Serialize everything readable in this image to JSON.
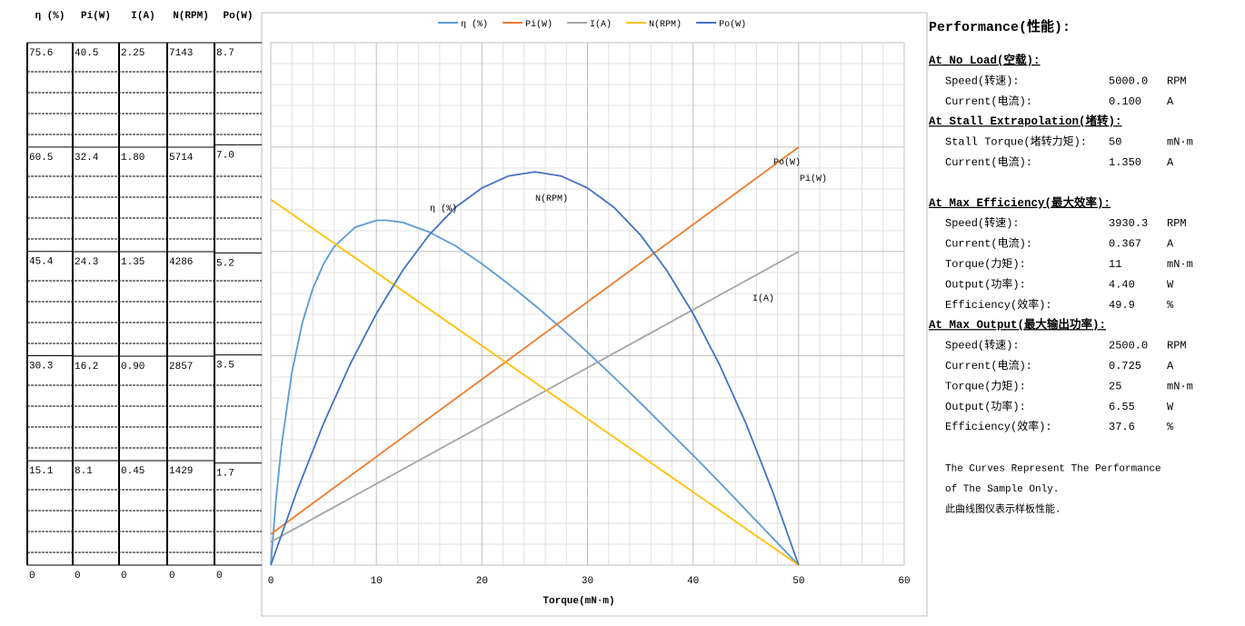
{
  "chart_data": {
    "type": "line",
    "x_label": "Torque(mN·m)",
    "xlim": [
      0,
      60
    ],
    "xticks": [
      0,
      10,
      20,
      30,
      40,
      50,
      60
    ],
    "grid": true,
    "legend": "top",
    "series": [
      {
        "name": "η (%)",
        "color": "#5b9bd5",
        "ylim": [
          0,
          75.6
        ],
        "yticks": [
          75.6,
          60.5,
          45.4,
          30.3,
          15.1,
          0
        ],
        "x": [
          0,
          0.5,
          1,
          2,
          3,
          4,
          5,
          6,
          8,
          10,
          11,
          12.5,
          15,
          17.5,
          20,
          22.5,
          25,
          27.5,
          30,
          32.5,
          35,
          37.5,
          40,
          42.5,
          45,
          47.5,
          50
        ],
        "values": [
          0,
          9.6,
          17.1,
          27.9,
          35.2,
          40.1,
          43.6,
          46.1,
          48.9,
          49.9,
          49.9,
          49.6,
          48.2,
          46.2,
          43.6,
          40.7,
          37.6,
          34.3,
          30.8,
          27.2,
          23.5,
          19.7,
          15.9,
          12.0,
          8.0,
          4.0,
          0
        ]
      },
      {
        "name": "Pi(W)",
        "color": "#ed7d31",
        "ylim": [
          0,
          40.5
        ],
        "yticks": [
          40.5,
          32.4,
          24.3,
          16.2,
          8.1,
          0
        ],
        "x": [
          0,
          50
        ],
        "values": [
          2.4,
          32.4
        ]
      },
      {
        "name": "I(A)",
        "color": "#a5a5a5",
        "ylim": [
          0,
          2.25
        ],
        "yticks": [
          2.25,
          {
            "value": 1.8,
            "label": "1.80"
          },
          1.35,
          {
            "value": 0.9,
            "label": "0.90"
          },
          0.45,
          0
        ],
        "x": [
          0,
          50
        ],
        "values": [
          0.1,
          1.35
        ]
      },
      {
        "name": "N(RPM)",
        "color": "#ffc000",
        "ylim": [
          0,
          7143
        ],
        "yticks": [
          7143,
          5714,
          4286,
          2857,
          1429,
          0
        ],
        "x": [
          0,
          50
        ],
        "values": [
          5000,
          0
        ]
      },
      {
        "name": "Po(W)",
        "color": "#4472c4",
        "ylim": [
          0,
          8.7
        ],
        "yticks": [
          8.7,
          {
            "value": 7,
            "label": "7.0"
          },
          5.2,
          3.5,
          1.7,
          0
        ],
        "x": [
          0,
          2.5,
          5,
          7.5,
          10,
          12.5,
          15,
          17.5,
          20,
          22.5,
          25,
          27.5,
          30,
          32.5,
          35,
          37.5,
          40,
          42.5,
          45,
          47.5,
          50
        ],
        "values": [
          0,
          1.24,
          2.36,
          3.34,
          4.19,
          4.91,
          5.5,
          5.96,
          6.28,
          6.48,
          6.55,
          6.48,
          6.28,
          5.96,
          5.5,
          4.91,
          4.19,
          3.34,
          2.36,
          1.24,
          0
        ]
      }
    ]
  },
  "performance": {
    "title": "Performance(性能):",
    "sections": [
      {
        "heading": "At No Load(空载):",
        "rows": [
          [
            "Speed(转速):",
            "5000.0",
            "RPM"
          ],
          [
            "Current(电流):",
            "0.100",
            "A"
          ]
        ]
      },
      {
        "heading": "At Stall Extrapolation(堵转):",
        "rows": [
          [
            "Stall Torque(堵转力矩):",
            "50",
            "mN·m"
          ],
          [
            "Current(电流):",
            "1.350",
            "A"
          ]
        ]
      },
      {
        "heading": "At Max Efficiency(最大效率):",
        "rows": [
          [
            "Speed(转速):",
            "3930.3",
            "RPM"
          ],
          [
            "Current(电流):",
            "0.367",
            "A"
          ],
          [
            "Torque(力矩):",
            "11",
            "mN·m"
          ],
          [
            "Output(功率):",
            "4.40",
            "W"
          ],
          [
            "Efficiency(效率):",
            "49.9",
            "%"
          ]
        ]
      },
      {
        "heading": "At Max Output(最大输出功率):",
        "rows": [
          [
            "Speed(转速):",
            "2500.0",
            "RPM"
          ],
          [
            "Current(电流):",
            "0.725",
            "A"
          ],
          [
            "Torque(力矩):",
            "25",
            "mN·m"
          ],
          [
            "Output(功率):",
            "6.55",
            "W"
          ],
          [
            "Efficiency(效率):",
            "37.6",
            "%"
          ]
        ]
      }
    ],
    "notes": [
      "The Curves Represent The Performance",
      "of The Sample Only.",
      "此曲线图仪表示样板性能."
    ]
  }
}
